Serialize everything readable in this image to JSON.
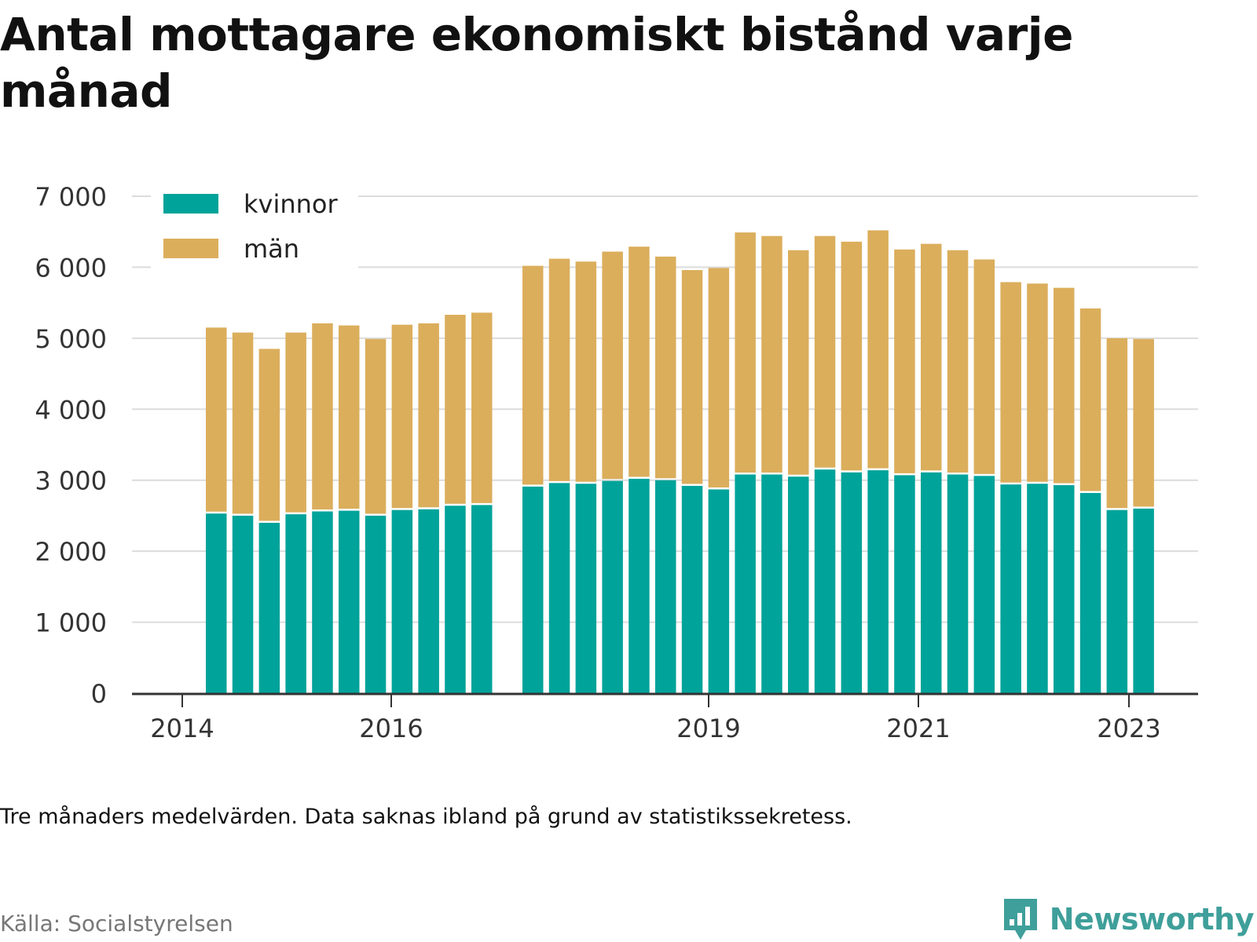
{
  "title": "Antal mottagare ekonomiskt bistånd varje månad",
  "note": "Tre månaders medelvärden. Data saknas ibland på grund av statistikssekretess.",
  "source": "Källa: Socialstyrelsen",
  "brand": {
    "name": "Newsworthy",
    "icon": "bar-chart-speech-bubble-icon",
    "color": "#3f9f9a"
  },
  "chart_data": {
    "type": "bar",
    "stacked": true,
    "x_ticks": [
      "2014",
      "2016",
      "2019",
      "2021",
      "2023"
    ],
    "y_ticks": [
      "0",
      "1 000",
      "2 000",
      "3 000",
      "4 000",
      "5 000",
      "6 000",
      "7 000"
    ],
    "ylim": [
      0,
      7000
    ],
    "grid": true,
    "legend_position": "top-left",
    "series": [
      {
        "name": "kvinnor",
        "color": "#00a39a",
        "values": [
          2530,
          2500,
          2400,
          2520,
          2560,
          2570,
          2500,
          2580,
          2590,
          2640,
          2650,
          2910,
          2960,
          2950,
          2990,
          3020,
          3000,
          2920,
          2870,
          3080,
          3080,
          3050,
          3150,
          3110,
          3140,
          3070,
          3110,
          3080,
          3060,
          2940,
          2950,
          2930,
          2820,
          2580,
          2600
        ]
      },
      {
        "name": "män",
        "color": "#dbae5c",
        "values": [
          2620,
          2580,
          2450,
          2560,
          2650,
          2610,
          2490,
          2610,
          2620,
          2690,
          2710,
          3110,
          3160,
          3130,
          3230,
          3270,
          3150,
          3040,
          3120,
          3410,
          3360,
          3190,
          3290,
          3250,
          3380,
          3180,
          3220,
          3160,
          3050,
          2850,
          2820,
          2780,
          2600,
          2420,
          2390
        ]
      }
    ],
    "groups": [
      {
        "count": 11
      },
      {
        "count": 24
      }
    ]
  }
}
